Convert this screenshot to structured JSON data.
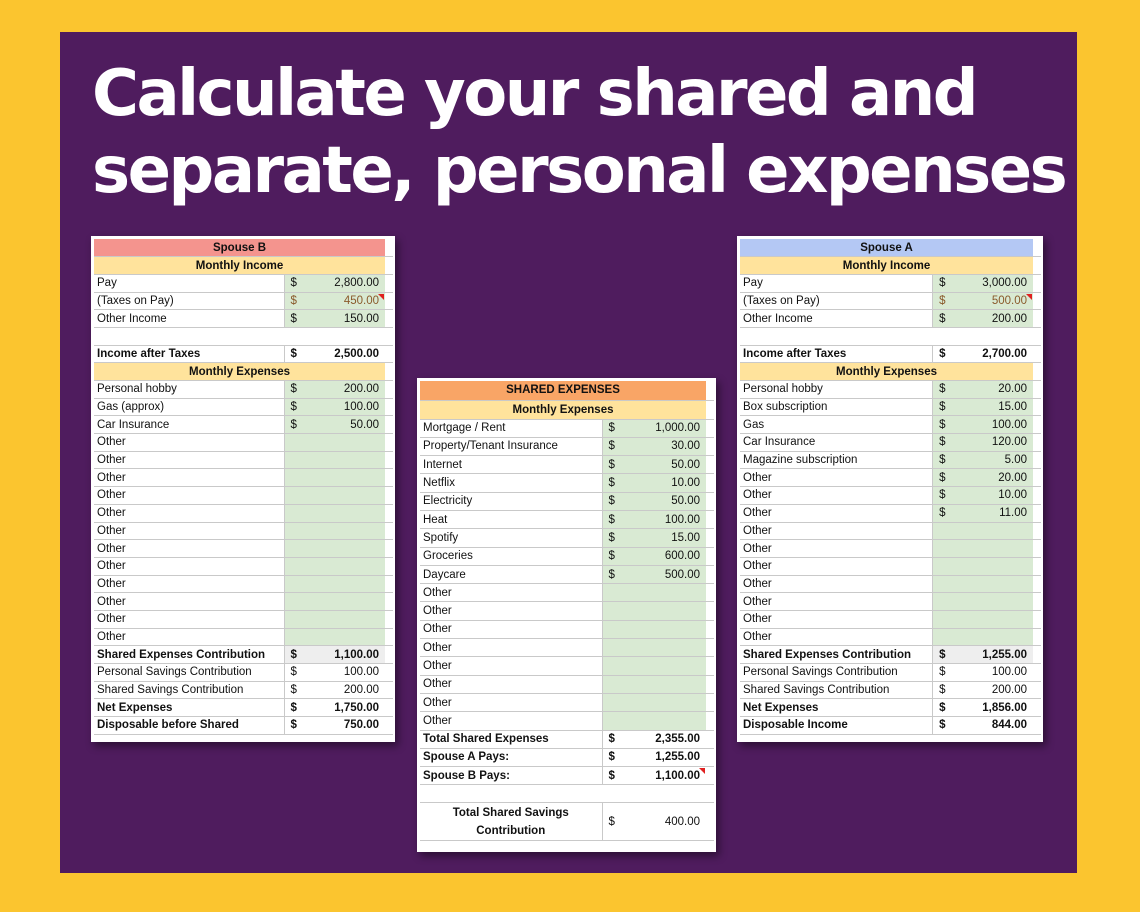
{
  "headline": {
    "line1": "Calculate your shared and",
    "line2": "separate, personal expenses"
  },
  "colors": {
    "background": "#fbc52f",
    "panel": "#4f1c5e",
    "spouse_b_header": "#f4948e",
    "spouse_a_header": "#b4c8f4",
    "shared_header": "#f9a566",
    "section_header": "#ffe39c",
    "value_cell": "#d9ead3"
  },
  "spouse_b": {
    "title": "Spouse B",
    "income_header": "Monthly Income",
    "income_rows": [
      {
        "label": "Pay",
        "sym": "$",
        "amount": "2,800.00"
      },
      {
        "label": "(Taxes on Pay)",
        "sym": "$",
        "amount": "450.00"
      },
      {
        "label": "Other Income",
        "sym": "$",
        "amount": "150.00"
      }
    ],
    "after_taxes": {
      "label": "Income after Taxes",
      "sym": "$",
      "amount": "2,500.00"
    },
    "expenses_header": "Monthly Expenses",
    "expense_rows": [
      {
        "label": "Personal hobby",
        "sym": "$",
        "amount": "200.00"
      },
      {
        "label": "Gas (approx)",
        "sym": "$",
        "amount": "100.00"
      },
      {
        "label": "Car Insurance",
        "sym": "$",
        "amount": "50.00"
      },
      {
        "label": "Other",
        "sym": "",
        "amount": ""
      },
      {
        "label": "Other",
        "sym": "",
        "amount": ""
      },
      {
        "label": "Other",
        "sym": "",
        "amount": ""
      },
      {
        "label": "Other",
        "sym": "",
        "amount": ""
      },
      {
        "label": "Other",
        "sym": "",
        "amount": ""
      },
      {
        "label": "Other",
        "sym": "",
        "amount": ""
      },
      {
        "label": "Other",
        "sym": "",
        "amount": ""
      },
      {
        "label": "Other",
        "sym": "",
        "amount": ""
      },
      {
        "label": "Other",
        "sym": "",
        "amount": ""
      },
      {
        "label": "Other",
        "sym": "",
        "amount": ""
      },
      {
        "label": "Other",
        "sym": "",
        "amount": ""
      },
      {
        "label": "Other",
        "sym": "",
        "amount": ""
      }
    ],
    "summary_rows": [
      {
        "label": "Shared Expenses Contribution",
        "sym": "$",
        "amount": "1,100.00",
        "bold": true
      },
      {
        "label": "Personal Savings Contribution",
        "sym": "$",
        "amount": "100.00",
        "bold": false
      },
      {
        "label": "Shared Savings Contribution",
        "sym": "$",
        "amount": "200.00",
        "bold": false
      },
      {
        "label": "Net Expenses",
        "sym": "$",
        "amount": "1,750.00",
        "bold": true
      },
      {
        "label": "Disposable before Shared",
        "sym": "$",
        "amount": "750.00",
        "bold": true
      }
    ]
  },
  "shared": {
    "title": "SHARED EXPENSES",
    "expenses_header": "Monthly Expenses",
    "expense_rows": [
      {
        "label": "Mortgage / Rent",
        "sym": "$",
        "amount": "1,000.00"
      },
      {
        "label": "Property/Tenant Insurance",
        "sym": "$",
        "amount": "30.00"
      },
      {
        "label": "Internet",
        "sym": "$",
        "amount": "50.00"
      },
      {
        "label": "Netflix",
        "sym": "$",
        "amount": "10.00"
      },
      {
        "label": "Electricity",
        "sym": "$",
        "amount": "50.00"
      },
      {
        "label": "Heat",
        "sym": "$",
        "amount": "100.00"
      },
      {
        "label": "Spotify",
        "sym": "$",
        "amount": "15.00"
      },
      {
        "label": "Groceries",
        "sym": "$",
        "amount": "600.00"
      },
      {
        "label": "Daycare",
        "sym": "$",
        "amount": "500.00"
      },
      {
        "label": "Other",
        "sym": "",
        "amount": ""
      },
      {
        "label": "Other",
        "sym": "",
        "amount": ""
      },
      {
        "label": "Other",
        "sym": "",
        "amount": ""
      },
      {
        "label": "Other",
        "sym": "",
        "amount": ""
      },
      {
        "label": "Other",
        "sym": "",
        "amount": ""
      },
      {
        "label": "Other",
        "sym": "",
        "amount": ""
      },
      {
        "label": "Other",
        "sym": "",
        "amount": ""
      },
      {
        "label": "Other",
        "sym": "",
        "amount": ""
      }
    ],
    "total_rows": [
      {
        "label": "Total Shared Expenses",
        "sym": "$",
        "amount": "2,355.00"
      },
      {
        "label": "Spouse A Pays:",
        "sym": "$",
        "amount": "1,255.00"
      },
      {
        "label": "Spouse B Pays:",
        "sym": "$",
        "amount": "1,100.00"
      }
    ],
    "savings": {
      "label": "Total Shared Savings Contribution",
      "sym": "$",
      "amount": "400.00"
    }
  },
  "spouse_a": {
    "title": "Spouse A",
    "income_header": "Monthly Income",
    "income_rows": [
      {
        "label": "Pay",
        "sym": "$",
        "amount": "3,000.00"
      },
      {
        "label": "(Taxes on Pay)",
        "sym": "$",
        "amount": "500.00"
      },
      {
        "label": "Other Income",
        "sym": "$",
        "amount": "200.00"
      }
    ],
    "after_taxes": {
      "label": "Income after Taxes",
      "sym": "$",
      "amount": "2,700.00"
    },
    "expenses_header": "Monthly Expenses",
    "expense_rows": [
      {
        "label": "Personal hobby",
        "sym": "$",
        "amount": "20.00"
      },
      {
        "label": "Box subscription",
        "sym": "$",
        "amount": "15.00"
      },
      {
        "label": "Gas",
        "sym": "$",
        "amount": "100.00"
      },
      {
        "label": "Car Insurance",
        "sym": "$",
        "amount": "120.00"
      },
      {
        "label": "Magazine subscription",
        "sym": "$",
        "amount": "5.00"
      },
      {
        "label": "Other",
        "sym": "$",
        "amount": "20.00"
      },
      {
        "label": "Other",
        "sym": "$",
        "amount": "10.00"
      },
      {
        "label": "Other",
        "sym": "$",
        "amount": "11.00"
      },
      {
        "label": "Other",
        "sym": "",
        "amount": ""
      },
      {
        "label": "Other",
        "sym": "",
        "amount": ""
      },
      {
        "label": "Other",
        "sym": "",
        "amount": ""
      },
      {
        "label": "Other",
        "sym": "",
        "amount": ""
      },
      {
        "label": "Other",
        "sym": "",
        "amount": ""
      },
      {
        "label": "Other",
        "sym": "",
        "amount": ""
      },
      {
        "label": "Other",
        "sym": "",
        "amount": ""
      }
    ],
    "summary_rows": [
      {
        "label": "Shared Expenses Contribution",
        "sym": "$",
        "amount": "1,255.00",
        "bold": true
      },
      {
        "label": "Personal Savings Contribution",
        "sym": "$",
        "amount": "100.00",
        "bold": false
      },
      {
        "label": "Shared Savings Contribution",
        "sym": "$",
        "amount": "200.00",
        "bold": false
      },
      {
        "label": "Net Expenses",
        "sym": "$",
        "amount": "1,856.00",
        "bold": true
      },
      {
        "label": "Disposable Income",
        "sym": "$",
        "amount": "844.00",
        "bold": true
      }
    ]
  }
}
